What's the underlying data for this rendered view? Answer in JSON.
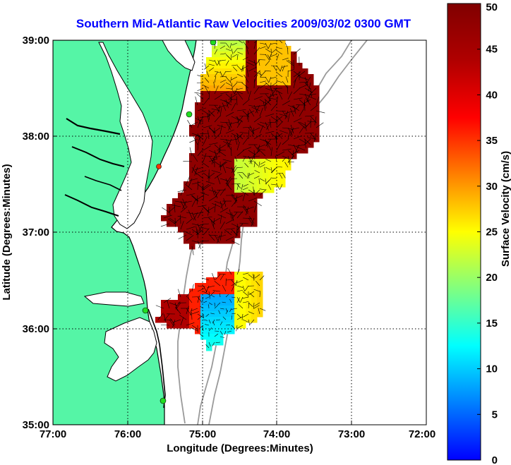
{
  "chart_data": {
    "type": "heatmap",
    "title": "Southern Mid-Atlantic Raw Velocities 2009/03/02 0300 GMT",
    "xlabel": "Longitude (Degrees:Minutes)",
    "ylabel": "Latitude (Degrees:Minutes)",
    "colorbar_label": "Surface Velocity (cm/s)",
    "x_ticks": [
      "77:00",
      "76:00",
      "75:00",
      "74:00",
      "73:00",
      "72:00"
    ],
    "y_ticks": [
      "39:00",
      "38:00",
      "37:00",
      "36:00",
      "35:00"
    ],
    "colorbar_ticks": [
      "0",
      "5",
      "10",
      "15",
      "20",
      "25",
      "30",
      "35",
      "40",
      "45",
      "50"
    ],
    "xlim": [
      -77,
      -72
    ],
    "ylim": [
      35,
      39
    ],
    "clim": [
      0,
      50
    ],
    "grid": true,
    "colors": {
      "title": "#0000ff",
      "land": "#55f5a6",
      "coast": "#000000",
      "bathymetry": "#9a9a9a",
      "vectors": "#000000",
      "stations": "#22dd22"
    }
  }
}
